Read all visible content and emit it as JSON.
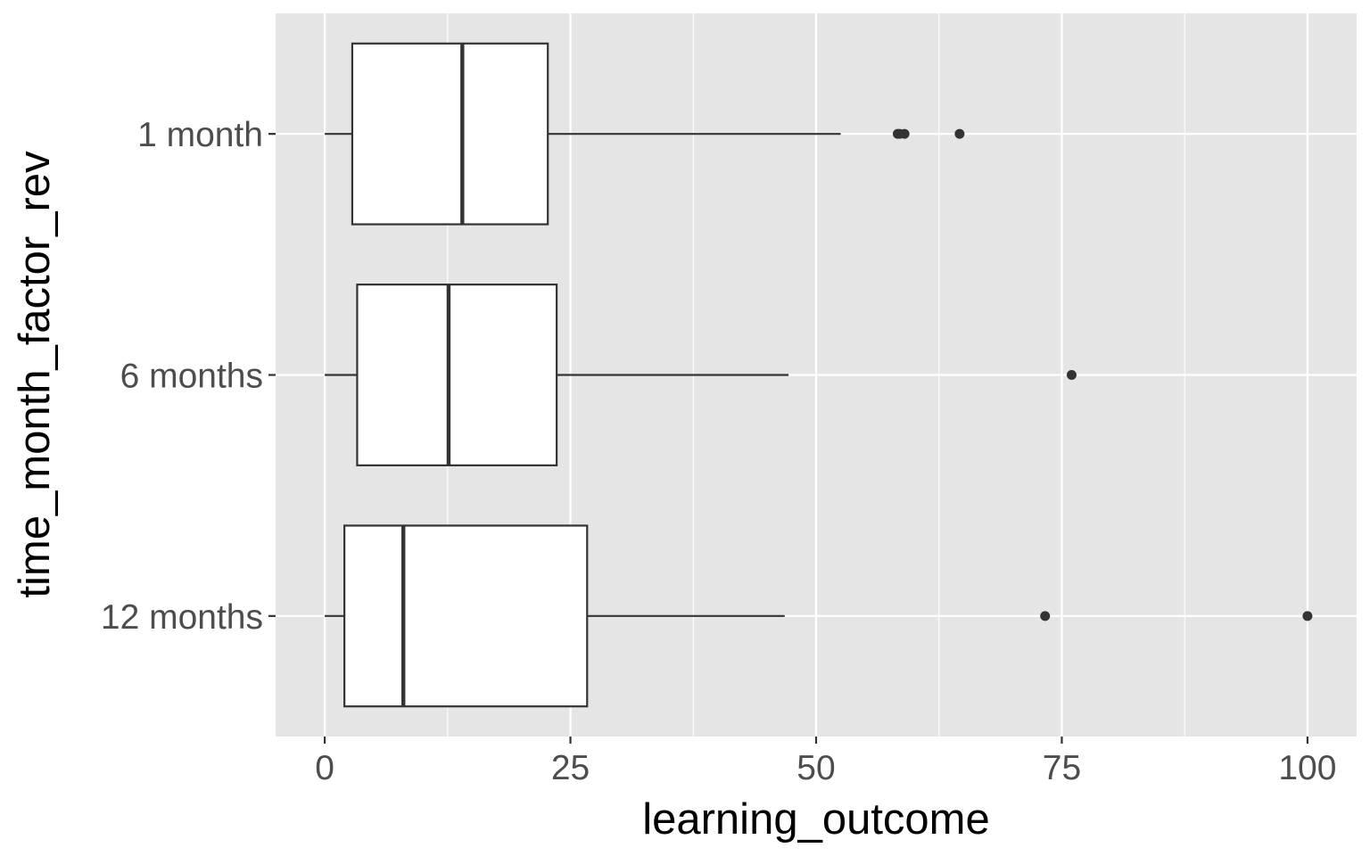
{
  "chart_data": {
    "type": "boxplot",
    "orientation": "horizontal",
    "title": "",
    "xlabel": "learning_outcome",
    "ylabel": "time_month_factor_rev",
    "xlim": [
      -5,
      105
    ],
    "x_ticks": [
      0,
      25,
      50,
      75,
      100
    ],
    "x_tick_labels": [
      "0",
      "25",
      "50",
      "75",
      "100"
    ],
    "x_minor_ticks": [
      12.5,
      37.5,
      62.5,
      87.5
    ],
    "grid": true,
    "legend": "none",
    "categories": [
      "1 month",
      "6 months",
      "12 months"
    ],
    "boxes": [
      {
        "category": "1 month",
        "whisker_low": 0,
        "q1": 2.8,
        "median": 14.0,
        "q3": 22.7,
        "whisker_high": 52.5,
        "outliers": [
          58.3,
          58.5,
          59.0,
          64.6
        ]
      },
      {
        "category": "6 months",
        "whisker_low": 0,
        "q1": 3.3,
        "median": 12.6,
        "q3": 23.6,
        "whisker_high": 47.2,
        "outliers": [
          76.0
        ]
      },
      {
        "category": "12 months",
        "whisker_low": 0,
        "q1": 2.0,
        "median": 8.0,
        "q3": 26.7,
        "whisker_high": 46.8,
        "outliers": [
          73.3,
          100.0
        ]
      }
    ],
    "colors": {
      "panel": "#e5e5e5",
      "grid": "#ffffff",
      "box_fill": "#ffffff",
      "box_stroke": "#333333",
      "outlier": "#333333",
      "tick_label": "#4d4d4d",
      "axis_title": "#000000"
    }
  }
}
